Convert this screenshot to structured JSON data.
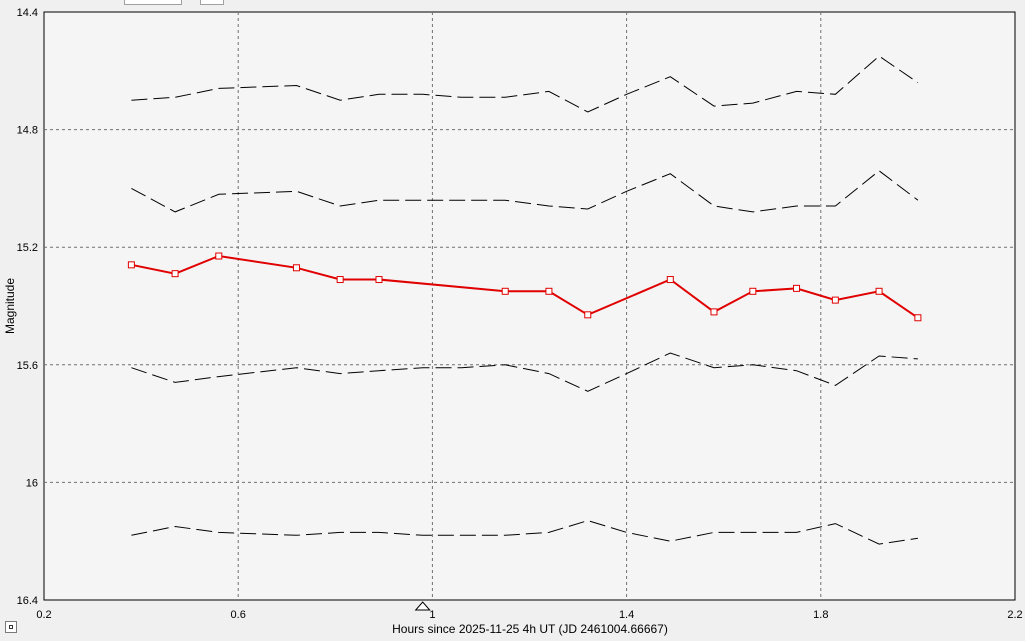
{
  "chart_data": {
    "type": "line",
    "xlabel": "Hours since 2025-11-25 4h UT (JD 2461004.66667)",
    "ylabel": "Magnitude",
    "xlim": [
      0.2,
      2.2
    ],
    "ylim": [
      14.4,
      16.4
    ],
    "y_inverted": true,
    "grid": true,
    "x_ticks": [
      "0.2",
      "0.6",
      "1",
      "1.4",
      "1.8",
      "2.2"
    ],
    "y_ticks": [
      "14.4",
      "14.8",
      "15.2",
      "15.6",
      "16",
      "16.4"
    ],
    "marker_x": 0.98,
    "series": [
      {
        "style": "dashed",
        "color": "#000000",
        "x": [
          0.38,
          0.47,
          0.56,
          0.72,
          0.81,
          0.89,
          0.98,
          1.06,
          1.15,
          1.24,
          1.32,
          1.4,
          1.49,
          1.58,
          1.66,
          1.75,
          1.83,
          1.92,
          2.0
        ],
        "y": [
          14.7,
          14.69,
          14.66,
          14.65,
          14.7,
          14.68,
          14.68,
          14.69,
          14.69,
          14.67,
          14.74,
          14.68,
          14.62,
          14.72,
          14.71,
          14.67,
          14.68,
          14.55,
          14.64
        ]
      },
      {
        "style": "dashed",
        "color": "#000000",
        "x": [
          0.38,
          0.47,
          0.56,
          0.72,
          0.81,
          0.89,
          0.98,
          1.06,
          1.15,
          1.24,
          1.32,
          1.4,
          1.49,
          1.58,
          1.66,
          1.75,
          1.83,
          1.92,
          2.0
        ],
        "y": [
          15.0,
          15.08,
          15.02,
          15.01,
          15.06,
          15.04,
          15.04,
          15.04,
          15.04,
          15.06,
          15.07,
          15.01,
          14.95,
          15.06,
          15.08,
          15.06,
          15.06,
          14.94,
          15.04
        ]
      },
      {
        "style": "solid-markers",
        "color": "#e00000",
        "x": [
          0.38,
          0.47,
          0.56,
          0.72,
          0.81,
          0.89,
          1.15,
          1.24,
          1.32,
          1.49,
          1.58,
          1.66,
          1.75,
          1.83,
          1.92,
          2.0
        ],
        "y": [
          15.26,
          15.29,
          15.23,
          15.27,
          15.31,
          15.31,
          15.35,
          15.35,
          15.43,
          15.31,
          15.42,
          15.35,
          15.34,
          15.38,
          15.35,
          15.44
        ]
      },
      {
        "style": "dashed",
        "color": "#000000",
        "x": [
          0.38,
          0.47,
          0.56,
          0.72,
          0.81,
          0.89,
          0.98,
          1.06,
          1.15,
          1.24,
          1.32,
          1.4,
          1.49,
          1.58,
          1.66,
          1.75,
          1.83,
          1.92,
          2.0
        ],
        "y": [
          15.61,
          15.66,
          15.64,
          15.61,
          15.63,
          15.62,
          15.61,
          15.61,
          15.6,
          15.63,
          15.69,
          15.63,
          15.56,
          15.61,
          15.6,
          15.62,
          15.67,
          15.57,
          15.58
        ]
      },
      {
        "style": "dashed",
        "color": "#000000",
        "x": [
          0.38,
          0.47,
          0.56,
          0.72,
          0.81,
          0.89,
          0.98,
          1.06,
          1.15,
          1.24,
          1.32,
          1.4,
          1.49,
          1.58,
          1.66,
          1.75,
          1.83,
          1.92,
          2.0
        ],
        "y": [
          16.18,
          16.15,
          16.17,
          16.18,
          16.17,
          16.17,
          16.18,
          16.18,
          16.18,
          16.17,
          16.13,
          16.17,
          16.2,
          16.17,
          16.17,
          16.17,
          16.14,
          16.21,
          16.19
        ]
      }
    ]
  }
}
